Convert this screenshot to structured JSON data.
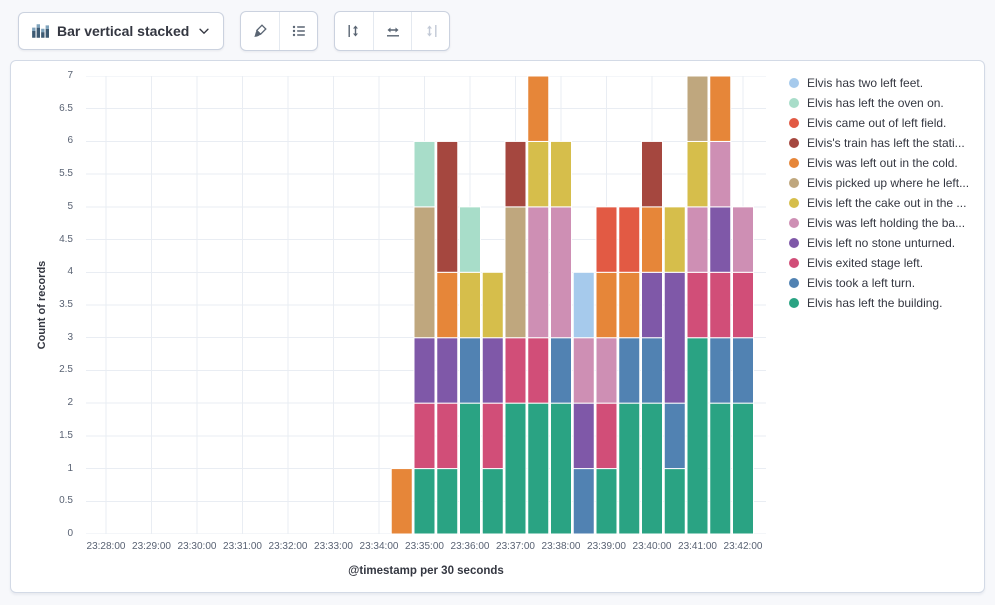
{
  "toolbar": {
    "chart_switcher": {
      "label": "Bar vertical stacked",
      "icon": "bar-vertical-stacked",
      "chevron": "down"
    },
    "icon_buttons": [
      {
        "name": "visual-options",
        "disabled": false
      },
      {
        "name": "legend-settings",
        "disabled": false
      },
      {
        "name": "left-axis",
        "disabled": false
      },
      {
        "name": "bottom-axis",
        "disabled": false
      },
      {
        "name": "right-axis",
        "disabled": true
      }
    ]
  },
  "chart_data": {
    "type": "bar",
    "stacked": true,
    "orientation": "vertical",
    "title": "",
    "xlabel": "@timestamp per 30 seconds",
    "ylabel": "Count of records",
    "ylim": [
      0,
      7
    ],
    "grid": true,
    "legend_position": "right",
    "y_ticks": [
      0,
      0.5,
      1,
      1.5,
      2,
      2.5,
      3,
      3.5,
      4,
      4.5,
      5,
      5.5,
      6,
      6.5,
      7
    ],
    "y_tick_labels": [
      "0",
      "0.5",
      "1",
      "1.5",
      "2",
      "2.5",
      "3",
      "3.5",
      "4",
      "4.5",
      "5",
      "5.5",
      "6",
      "6.5",
      "7"
    ],
    "x_minute_labels": [
      "23:28:00",
      "23:29:00",
      "23:30:00",
      "23:31:00",
      "23:32:00",
      "23:33:00",
      "23:34:00",
      "23:35:00",
      "23:36:00",
      "23:37:00",
      "23:38:00",
      "23:39:00",
      "23:40:00",
      "23:41:00",
      "23:42:00"
    ],
    "categories": [
      "23:34:30",
      "23:35:00",
      "23:35:30",
      "23:36:00",
      "23:36:30",
      "23:37:00",
      "23:37:30",
      "23:38:00",
      "23:38:30",
      "23:39:00",
      "23:39:30",
      "23:40:00",
      "23:40:30",
      "23:41:00",
      "23:41:30",
      "23:42:00"
    ],
    "stack_order": "bottom of stack = last series in list (reverse of legend order)",
    "series": [
      {
        "name": "Elvis has two left feet.",
        "color": "#A6CAEC",
        "values": [
          0,
          0,
          0,
          0,
          0,
          0,
          0,
          0,
          1,
          0,
          0,
          0,
          0,
          0,
          0,
          0
        ]
      },
      {
        "name": "Elvis has left the oven on.",
        "color": "#A8DDC9",
        "values": [
          0,
          1,
          0,
          1,
          0,
          0,
          0,
          0,
          0,
          0,
          0,
          0,
          0,
          0,
          0,
          0
        ]
      },
      {
        "name": "Elvis came out of left field.",
        "color": "#E25A44",
        "values": [
          0,
          0,
          0,
          0,
          0,
          0,
          0,
          0,
          0,
          1,
          1,
          0,
          0,
          0,
          0,
          0
        ]
      },
      {
        "name": "Elvis's train has left the stati...",
        "color": "#A5473F",
        "values": [
          0,
          0,
          2,
          0,
          0,
          1,
          0,
          0,
          0,
          0,
          0,
          1,
          0,
          0,
          0,
          0
        ]
      },
      {
        "name": "Elvis was left out in the cold.",
        "color": "#E68639",
        "values": [
          1,
          0,
          1,
          0,
          0,
          0,
          1,
          0,
          0,
          1,
          1,
          1,
          0,
          0,
          1,
          0
        ]
      },
      {
        "name": "Elvis picked up where he left...",
        "color": "#BFA77E",
        "values": [
          0,
          2,
          0,
          0,
          0,
          2,
          0,
          0,
          0,
          0,
          0,
          0,
          0,
          1,
          0,
          0
        ]
      },
      {
        "name": "Elvis left the cake out in the ...",
        "color": "#D6BE4B",
        "values": [
          0,
          0,
          0,
          1,
          1,
          0,
          1,
          1,
          0,
          0,
          0,
          0,
          1,
          1,
          0,
          0
        ]
      },
      {
        "name": "Elvis was left holding the ba...",
        "color": "#CE8FB4",
        "values": [
          0,
          0,
          0,
          0,
          0,
          0,
          2,
          2,
          1,
          1,
          0,
          0,
          0,
          1,
          1,
          1
        ]
      },
      {
        "name": "Elvis left no stone unturned.",
        "color": "#7F58A8",
        "values": [
          0,
          1,
          1,
          0,
          1,
          0,
          0,
          0,
          1,
          0,
          0,
          1,
          2,
          0,
          1,
          0
        ]
      },
      {
        "name": "Elvis exited stage left.",
        "color": "#D14E78",
        "values": [
          0,
          1,
          1,
          0,
          1,
          1,
          1,
          0,
          0,
          1,
          0,
          0,
          0,
          1,
          1,
          1
        ]
      },
      {
        "name": "Elvis took a left turn.",
        "color": "#5182B2",
        "values": [
          0,
          0,
          0,
          1,
          0,
          0,
          0,
          1,
          1,
          0,
          1,
          1,
          1,
          0,
          1,
          1
        ]
      },
      {
        "name": "Elvis has left the building.",
        "color": "#2AA383",
        "values": [
          0,
          1,
          1,
          2,
          1,
          2,
          2,
          2,
          0,
          1,
          2,
          2,
          1,
          3,
          2,
          2
        ]
      }
    ]
  }
}
